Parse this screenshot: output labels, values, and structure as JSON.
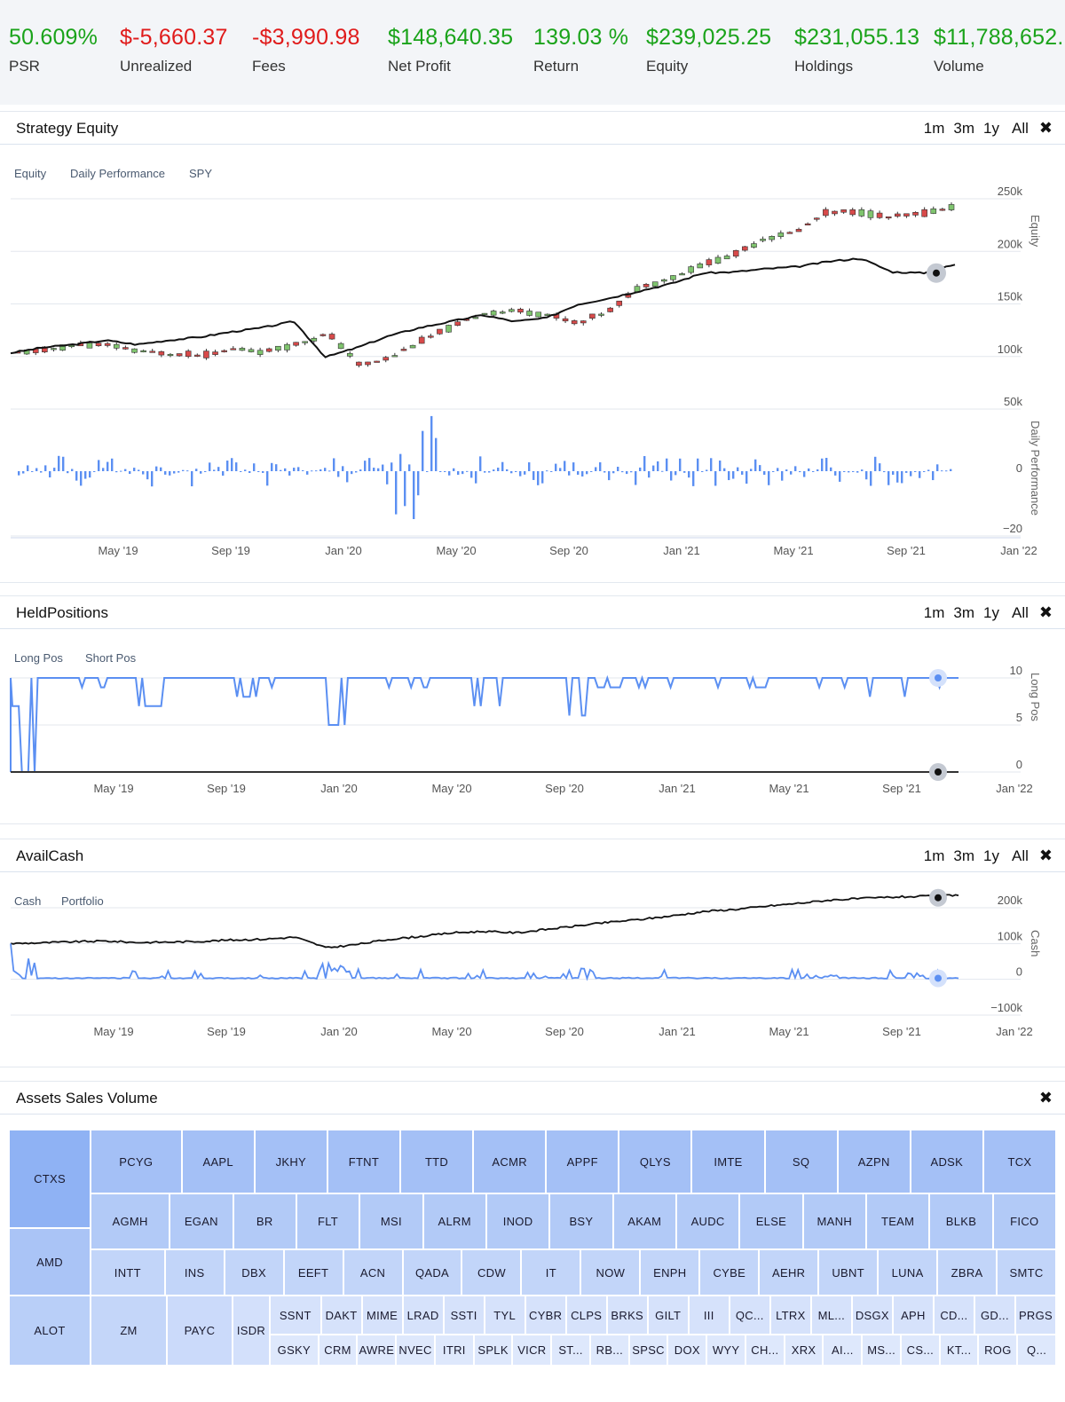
{
  "stats": [
    {
      "value": "50.609%",
      "label": "PSR",
      "color": "green"
    },
    {
      "value": "$-5,660.37",
      "label": "Unrealized",
      "color": "red"
    },
    {
      "value": "-$3,990.98",
      "label": "Fees",
      "color": "red"
    },
    {
      "value": "$148,640.35",
      "label": "Net Profit",
      "color": "green"
    },
    {
      "value": "139.03 %",
      "label": "Return",
      "color": "green"
    },
    {
      "value": "$239,025.25",
      "label": "Equity",
      "color": "green"
    },
    {
      "value": "$231,055.13",
      "label": "Holdings",
      "color": "green"
    },
    {
      "value": "$11,788,652.",
      "label": "Volume",
      "color": "green"
    }
  ],
  "controls": {
    "m1": "1m",
    "m3": "3m",
    "y1": "1y",
    "all": "All",
    "close": "✖"
  },
  "panels": {
    "equity": {
      "title": "Strategy Equity"
    },
    "held": {
      "title": "HeldPositions"
    },
    "cash": {
      "title": "AvailCash"
    },
    "assets": {
      "title": "Assets Sales Volume"
    }
  },
  "colors": {
    "green_text": "#1aa31a",
    "red_text": "#e01b1b",
    "blue_series": "#5b8ff2",
    "black_series": "#111111",
    "candle_up": "#7fc46e",
    "candle_down": "#d84a4a"
  },
  "chart_data": [
    {
      "id": "equity",
      "type": "line",
      "title": "Strategy Equity",
      "legend": [
        "Equity",
        "Daily Performance",
        "SPY"
      ],
      "x_ticks": [
        "May '19",
        "Sep '19",
        "Jan '20",
        "May '20",
        "Sep '20",
        "Jan '21",
        "May '21",
        "Sep '21",
        "Jan '22"
      ],
      "equity_axis": {
        "label": "Equity",
        "ticks": [
          "250k",
          "200k",
          "150k",
          "100k",
          "50k"
        ],
        "ylim": [
          50000,
          250000
        ]
      },
      "perf_axis": {
        "label": "Daily Performance",
        "ticks": [
          "0",
          "−20"
        ],
        "ylim": [
          -20,
          20
        ]
      },
      "series": [
        {
          "name": "Equity (candles, approx. monthly)",
          "values": [
            100000,
            103000,
            108000,
            107000,
            101000,
            99000,
            98000,
            104000,
            101000,
            109000,
            118000,
            88000,
            96000,
            112000,
            125000,
            138000,
            140000,
            137000,
            128000,
            140000,
            163000,
            171000,
            184000,
            193000,
            209000,
            215000,
            234000,
            234000,
            229000,
            232000,
            239000
          ]
        },
        {
          "name": "SPY",
          "values": [
            100000,
            105000,
            108000,
            112000,
            108000,
            112000,
            115000,
            120000,
            124000,
            130000,
            96000,
            105000,
            116000,
            124000,
            130000,
            136000,
            130000,
            133000,
            146000,
            152000,
            159000,
            166000,
            176000,
            177000,
            180000,
            182000,
            187000,
            190000,
            177000,
            176000,
            184000
          ]
        }
      ]
    },
    {
      "id": "held_positions",
      "type": "line",
      "title": "HeldPositions",
      "legend": [
        "Long Pos",
        "Short Pos"
      ],
      "x_ticks": [
        "May '19",
        "Sep '19",
        "Jan '20",
        "May '20",
        "Sep '20",
        "Jan '21",
        "May '21",
        "Sep '21",
        "Jan '22"
      ],
      "y_axis": {
        "label": "Long Pos",
        "ticks": [
          "10",
          "5",
          "0"
        ],
        "ylim": [
          0,
          10
        ]
      },
      "series": [
        {
          "name": "Long Pos",
          "values": [
            0,
            10,
            9,
            10,
            7,
            10,
            10,
            8,
            10,
            10,
            5,
            10,
            10,
            9,
            10,
            7,
            10,
            10,
            6,
            9,
            10,
            10,
            10,
            10,
            9,
            10,
            10,
            10,
            10,
            10,
            10
          ]
        },
        {
          "name": "Short Pos",
          "values": [
            0,
            0,
            0,
            0,
            0,
            0,
            0,
            0,
            0,
            0,
            0,
            0,
            0,
            0,
            0,
            0,
            0,
            0,
            0,
            0,
            0,
            0,
            0,
            0,
            0,
            0,
            0,
            0,
            0,
            0,
            0
          ]
        }
      ]
    },
    {
      "id": "avail_cash",
      "type": "line",
      "title": "AvailCash",
      "legend": [
        "Cash",
        "Portfolio"
      ],
      "x_ticks": [
        "May '19",
        "Sep '19",
        "Jan '20",
        "May '20",
        "Sep '20",
        "Jan '21",
        "May '21",
        "Sep '21",
        "Jan '22"
      ],
      "y_axis": {
        "label": "Cash",
        "ticks": [
          "200k",
          "100k",
          "0",
          "−100k"
        ],
        "ylim": [
          -100000,
          200000
        ]
      },
      "series": [
        {
          "name": "Cash",
          "values": [
            100000,
            5000,
            2000,
            4000,
            1000,
            3000,
            2000,
            4000,
            1000,
            2000,
            45000,
            2000,
            4000,
            1000,
            5000,
            2000,
            3000,
            1000,
            35000,
            4000,
            2000,
            1000,
            3000,
            -2000,
            4000,
            2000,
            12000,
            3000,
            1000,
            18000,
            3000
          ]
        },
        {
          "name": "Portfolio",
          "values": [
            100000,
            102000,
            105000,
            107000,
            103000,
            104000,
            106000,
            110000,
            112000,
            118000,
            88000,
            98000,
            112000,
            120000,
            130000,
            134000,
            130000,
            140000,
            150000,
            160000,
            168000,
            178000,
            190000,
            196000,
            205000,
            213000,
            222000,
            226000,
            230000,
            232000,
            236000
          ]
        }
      ]
    },
    {
      "id": "assets_sales_volume",
      "type": "treemap",
      "title": "Assets Sales Volume",
      "rows": [
        [
          "CTXS"
        ],
        [
          "AMD"
        ],
        [
          "ALOT"
        ],
        [
          "PCYG",
          "AAPL",
          "JKHY",
          "FTNT",
          "TTD",
          "ACMR",
          "APPF",
          "QLYS",
          "IMTE",
          "SQ",
          "AZPN",
          "ADSK",
          "TCX"
        ],
        [
          "AGMH",
          "EGAN",
          "BR",
          "FLT",
          "MSI",
          "ALRM",
          "INOD",
          "BSY",
          "AKAM",
          "AUDC",
          "ELSE",
          "MANH",
          "TEAM",
          "BLKB",
          "FICO"
        ],
        [
          "INTT",
          "INS",
          "DBX",
          "EEFT",
          "ACN",
          "QADA",
          "CDW",
          "IT",
          "NOW",
          "ENPH",
          "CYBE",
          "AEHR",
          "UBNT",
          "LUNA",
          "ZBRA",
          "SMTC"
        ],
        [
          "ZM",
          "PAYC",
          "ISDR"
        ],
        [
          "SSNT",
          "DAKT",
          "MIME",
          "LRAD",
          "SSTI",
          "TYL",
          "CYBR",
          "CLPS",
          "BRKS",
          "GILT",
          "III",
          "QC...",
          "LTRX",
          "ML...",
          "DSGX",
          "APH",
          "CD...",
          "GD...",
          "PRGS"
        ],
        [
          "GSKY",
          "CRM",
          "AWRE",
          "NVEC",
          "ITRI",
          "SPLK",
          "VICR",
          "ST...",
          "RB...",
          "SPSC",
          "DOX",
          "WYY",
          "CH...",
          "XRX",
          "AI...",
          "MS...",
          "CS...",
          "KT...",
          "ROG",
          "Q..."
        ]
      ]
    }
  ]
}
